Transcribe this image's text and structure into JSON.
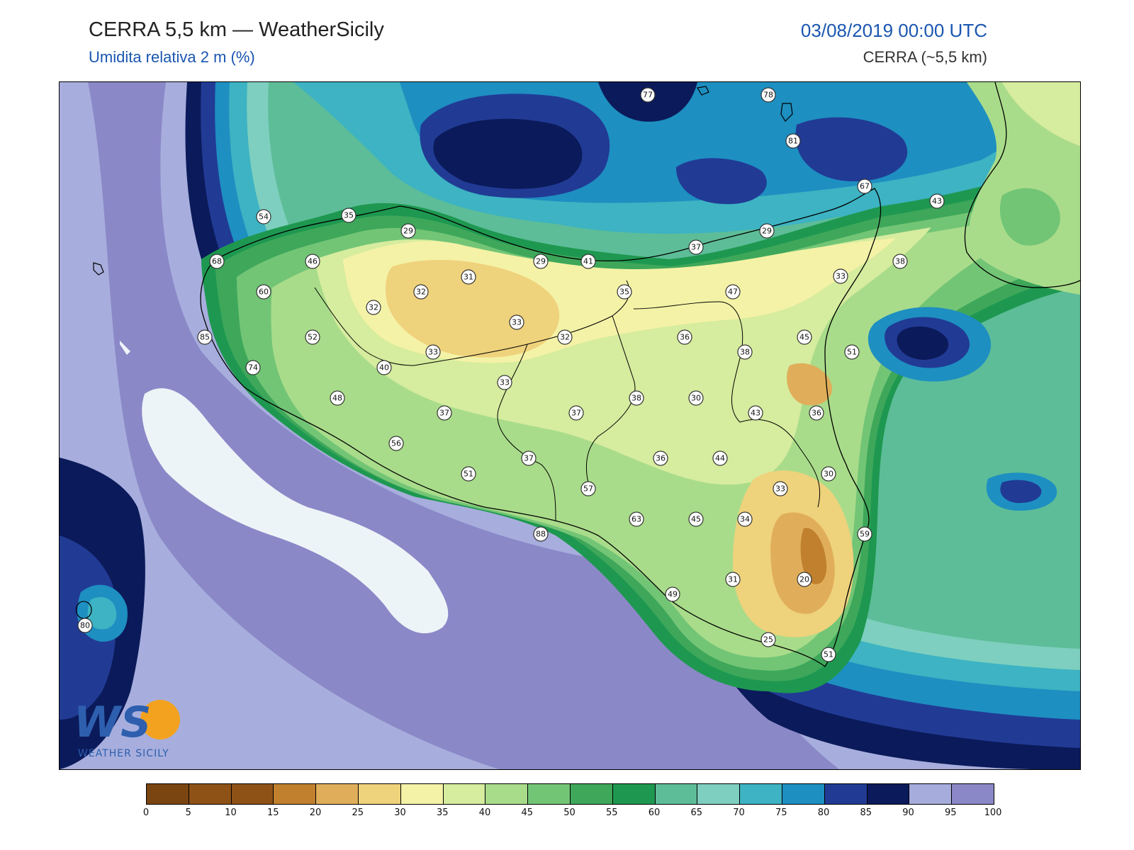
{
  "header": {
    "title": "CERRA 5,5 km — WeatherSicily",
    "subtitle": "Umidita relativa 2 m (%)",
    "datetime": "03/08/2019 00:00 UTC",
    "model": "CERRA (~5,5 km)"
  },
  "logo": {
    "letters": "WS",
    "text": "WEATHER SICILY"
  },
  "legend": {
    "ticks": [
      "0",
      "5",
      "10",
      "15",
      "20",
      "25",
      "30",
      "35",
      "40",
      "45",
      "50",
      "55",
      "60",
      "65",
      "70",
      "75",
      "80",
      "85",
      "90",
      "95",
      "100"
    ],
    "colors": [
      "#7a4510",
      "#8e5216",
      "#8e5216",
      "#c0802e",
      "#e0ae5a",
      "#efd27c",
      "#f4f2a6",
      "#d6ec9e",
      "#a9dc8a",
      "#73c576",
      "#3ea75a",
      "#1e9850",
      "#5dbd98",
      "#7ecfbf",
      "#3db3c3",
      "#1e8fc1",
      "#213b95",
      "#0b1a5a",
      "#a6acdc",
      "#8b88c8"
    ]
  },
  "stations": [
    {
      "v": "77"
    },
    {
      "v": "78"
    },
    {
      "v": "81"
    },
    {
      "v": "67"
    },
    {
      "v": "43"
    },
    {
      "v": "54"
    },
    {
      "v": "35"
    },
    {
      "v": "29"
    },
    {
      "v": "29"
    },
    {
      "v": "37"
    },
    {
      "v": "68"
    },
    {
      "v": "46"
    },
    {
      "v": "31"
    },
    {
      "v": "29"
    },
    {
      "v": "41"
    },
    {
      "v": "38"
    },
    {
      "v": "33"
    },
    {
      "v": "60"
    },
    {
      "v": "32"
    },
    {
      "v": "35"
    },
    {
      "v": "47"
    },
    {
      "v": "32"
    },
    {
      "v": "33"
    },
    {
      "v": "36"
    },
    {
      "v": "45"
    },
    {
      "v": "85"
    },
    {
      "v": "52"
    },
    {
      "v": "32"
    },
    {
      "v": "38"
    },
    {
      "v": "51"
    },
    {
      "v": "74"
    },
    {
      "v": "33"
    },
    {
      "v": "40"
    },
    {
      "v": "33"
    },
    {
      "v": "48"
    },
    {
      "v": "37"
    },
    {
      "v": "37"
    },
    {
      "v": "38"
    },
    {
      "v": "30"
    },
    {
      "v": "43"
    },
    {
      "v": "36"
    },
    {
      "v": "56"
    },
    {
      "v": "37"
    },
    {
      "v": "36"
    },
    {
      "v": "44"
    },
    {
      "v": "51"
    },
    {
      "v": "30"
    },
    {
      "v": "57"
    },
    {
      "v": "33"
    },
    {
      "v": "63"
    },
    {
      "v": "45"
    },
    {
      "v": "34"
    },
    {
      "v": "88"
    },
    {
      "v": "59"
    },
    {
      "v": "31"
    },
    {
      "v": "20"
    },
    {
      "v": "49"
    },
    {
      "v": "80"
    },
    {
      "v": "25"
    },
    {
      "v": "51"
    }
  ]
}
